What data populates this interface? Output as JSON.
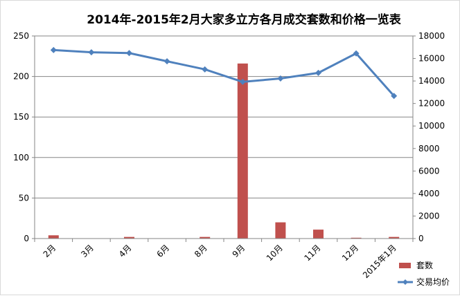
{
  "chart_data": {
    "type": "bar+line",
    "title": "2014年-2015年2月大家多立方各月成交套数和价格一览表",
    "categories": [
      "2月",
      "3月",
      "4月",
      "6月",
      "8月",
      "9月",
      "10月",
      "11月",
      "12月",
      "2015年1月"
    ],
    "series": [
      {
        "name": "套数",
        "type": "bar",
        "axis": "left",
        "color": "#c0504d",
        "values": [
          4,
          0,
          2,
          0,
          2,
          216,
          20,
          11,
          1,
          2
        ]
      },
      {
        "name": "交易均价",
        "type": "line",
        "axis": "right",
        "color": "#4f81bd",
        "marker": "diamond",
        "values": [
          16750,
          16550,
          16480,
          15750,
          15030,
          13920,
          14220,
          14720,
          16450,
          12670
        ]
      }
    ],
    "y_left": {
      "lim": [
        0,
        250
      ],
      "ticks": [
        0,
        50,
        100,
        150,
        200,
        250
      ]
    },
    "y_right": {
      "lim": [
        0,
        18000
      ],
      "ticks": [
        0,
        2000,
        4000,
        6000,
        8000,
        10000,
        12000,
        14000,
        16000,
        18000
      ]
    },
    "grid": "horizontal",
    "legend_position": "bottom-right"
  }
}
